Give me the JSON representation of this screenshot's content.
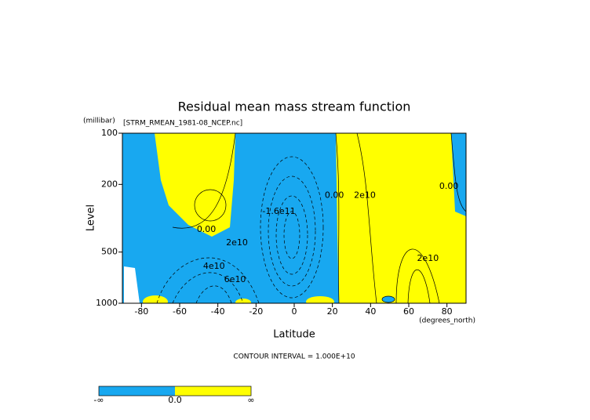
{
  "chart_data": {
    "type": "contour",
    "title": "Residual mean mass stream function",
    "subtitle": "[STRM_RMEAN_1981-08_NCEP.nc]",
    "y_units": "(millibar)",
    "x_units": "(degrees_north)",
    "xlabel": "Latitude",
    "ylabel": "Level",
    "xlim": [
      -90,
      90
    ],
    "xticks": [
      -80,
      -60,
      -40,
      -20,
      0,
      20,
      40,
      60,
      80
    ],
    "ylim": [
      1000,
      100
    ],
    "yticks": [
      100,
      200,
      500,
      1000
    ],
    "y_log": true,
    "contour_interval": "CONTOUR INTERVAL = 1.000E+10",
    "contour_labels": [
      {
        "text": "0.00",
        "x": -46,
        "y": 369
      },
      {
        "text": "2e10",
        "x": -30,
        "y": 442
      },
      {
        "text": "4e10",
        "x": -42,
        "y": 607
      },
      {
        "text": "6e10",
        "x": -31,
        "y": 727
      },
      {
        "text": "-1.6e11",
        "x": -8,
        "y": 289
      },
      {
        "text": "0.00",
        "x": 21,
        "y": 233
      },
      {
        "text": "2e10",
        "x": 37,
        "y": 233
      },
      {
        "text": "2e10",
        "x": 70,
        "y": 546
      },
      {
        "text": "0.00",
        "x": 81,
        "y": 206
      }
    ],
    "negative_color": "#18a8f0",
    "positive_color": "#ffff00",
    "colorbar_labels": [
      "-∞",
      "0.0",
      "∞"
    ]
  }
}
